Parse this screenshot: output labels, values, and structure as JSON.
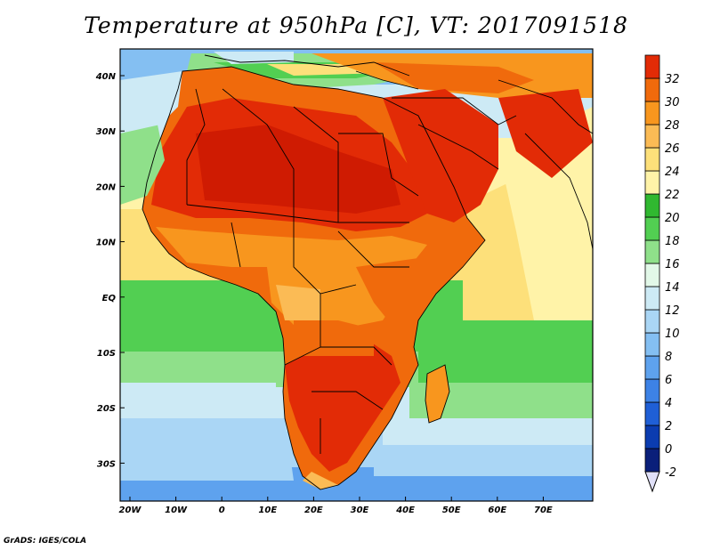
{
  "title": "Temperature at 950hPa [C], VT: 2017091518",
  "footer": "GrADS: IGES/COLA",
  "map": {
    "lon_labels": [
      "20W",
      "10W",
      "0",
      "10E",
      "20E",
      "30E",
      "40E",
      "50E",
      "60E",
      "70E"
    ],
    "lat_labels": [
      "40N",
      "30N",
      "20N",
      "10N",
      "EQ",
      "10S",
      "20S",
      "30S"
    ]
  },
  "colorbar": {
    "labels": [
      "-2",
      "0",
      "2",
      "4",
      "6",
      "8",
      "10",
      "12",
      "14",
      "16",
      "18",
      "20",
      "22",
      "24",
      "26",
      "28",
      "30",
      "32"
    ],
    "colors": [
      "#0a1f7a",
      "#0b3cb0",
      "#1f5fd6",
      "#3d82e6",
      "#5ea2ee",
      "#84bff2",
      "#aad6f5",
      "#cdeaf5",
      "#e2f8e8",
      "#8fe08a",
      "#52cf52",
      "#30b830",
      "#fff3a8",
      "#fde07a",
      "#fbbb55",
      "#f8961e",
      "#f06a0c",
      "#e22b06",
      "#cf1b02"
    ],
    "under_color": "#e0e0f8"
  }
}
